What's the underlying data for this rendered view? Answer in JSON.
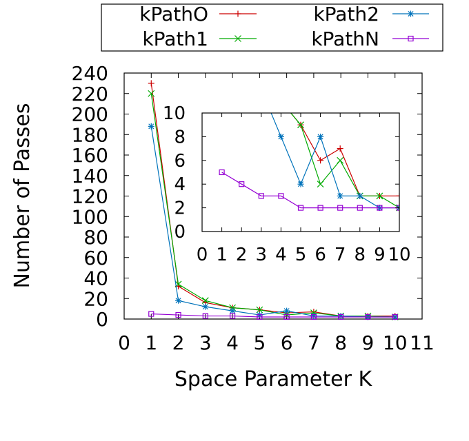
{
  "chart_data": [
    {
      "type": "line",
      "title": "",
      "xlabel": "Space Parameter K",
      "ylabel": "Number of Passes",
      "xlim": [
        0,
        11
      ],
      "ylim": [
        0,
        240
      ],
      "xticks": [
        0,
        1,
        2,
        3,
        4,
        5,
        6,
        7,
        8,
        9,
        10,
        11
      ],
      "yticks": [
        0,
        20,
        40,
        60,
        80,
        100,
        120,
        140,
        160,
        180,
        200,
        220,
        240
      ],
      "grid": false,
      "legend": "top",
      "x": [
        1,
        2,
        3,
        4,
        5,
        6,
        7,
        8,
        9,
        10
      ],
      "series": [
        {
          "name": "kPathO",
          "color": "#cc0000",
          "marker": "plus",
          "values": [
            230,
            32,
            16,
            11,
            9,
            6,
            7,
            3,
            3,
            3
          ]
        },
        {
          "name": "kPath1",
          "color": "#00aa00",
          "marker": "x",
          "values": [
            220,
            34,
            18,
            11,
            9,
            4,
            6,
            3,
            3,
            2
          ]
        },
        {
          "name": "kPath2",
          "color": "#0073bb",
          "marker": "star",
          "values": [
            188,
            18,
            12,
            8,
            4,
            8,
            3,
            3,
            2,
            2
          ]
        },
        {
          "name": "kPathN",
          "color": "#9400d3",
          "marker": "square",
          "values": [
            5,
            4,
            3,
            3,
            2,
            2,
            2,
            2,
            2,
            2
          ]
        }
      ]
    },
    {
      "type": "line",
      "inset": true,
      "xlim": [
        0,
        10
      ],
      "ylim": [
        0,
        10
      ],
      "xticks": [
        0,
        1,
        2,
        3,
        4,
        5,
        6,
        7,
        8,
        9,
        10
      ],
      "yticks": [
        0,
        2,
        4,
        6,
        8,
        10
      ],
      "grid": false
    }
  ]
}
